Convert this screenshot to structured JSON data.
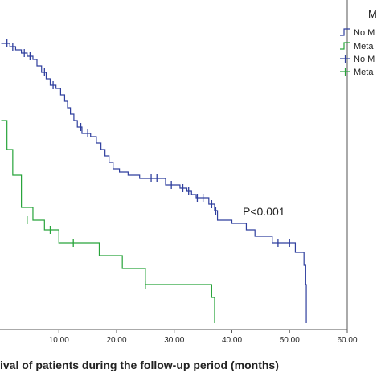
{
  "chart_data": {
    "type": "line",
    "subtype": "kaplan-meier",
    "xlabel": "ival of patients during the follow-up period (months)",
    "annotation": "P<0.001",
    "legend_title": "M",
    "legend_placement": "top-right",
    "xlim": [
      0,
      60
    ],
    "ylim": [
      0,
      1
    ],
    "x_ticks": [
      "10.00",
      "20.00",
      "30.00",
      "40.00",
      "50.00",
      "60.00"
    ],
    "grid": false,
    "legend_entries": [
      {
        "label": "No M",
        "symbol": "step",
        "color": "#2f3f9e"
      },
      {
        "label": "Meta",
        "symbol": "step",
        "color": "#27a33a"
      },
      {
        "label": "No M",
        "symbol": "cross",
        "color": "#2f3f9e"
      },
      {
        "label": "Meta",
        "symbol": "cross",
        "color": "#27a33a"
      }
    ],
    "series": [
      {
        "color": "#2f3f9e",
        "steps": [
          [
            0,
            0.89
          ],
          [
            1.5,
            0.88
          ],
          [
            2.5,
            0.87
          ],
          [
            3.5,
            0.86
          ],
          [
            4.5,
            0.85
          ],
          [
            5.5,
            0.84
          ],
          [
            6.2,
            0.82
          ],
          [
            7.0,
            0.8
          ],
          [
            7.8,
            0.78
          ],
          [
            8.5,
            0.76
          ],
          [
            9.5,
            0.75
          ],
          [
            10.3,
            0.73
          ],
          [
            11.0,
            0.71
          ],
          [
            11.5,
            0.69
          ],
          [
            12.0,
            0.67
          ],
          [
            12.6,
            0.65
          ],
          [
            13.2,
            0.63
          ],
          [
            14.0,
            0.61
          ],
          [
            15.5,
            0.6
          ],
          [
            16.5,
            0.58
          ],
          [
            17.3,
            0.56
          ],
          [
            18.0,
            0.54
          ],
          [
            18.7,
            0.52
          ],
          [
            19.4,
            0.5
          ],
          [
            20.5,
            0.49
          ],
          [
            22.0,
            0.48
          ],
          [
            24.0,
            0.47
          ],
          [
            28.5,
            0.45
          ],
          [
            31.0,
            0.44
          ],
          [
            32.2,
            0.43
          ],
          [
            33.0,
            0.42
          ],
          [
            33.8,
            0.41
          ],
          [
            36.0,
            0.39
          ],
          [
            37.0,
            0.37
          ],
          [
            37.5,
            0.34
          ],
          [
            40.0,
            0.33
          ],
          [
            42.5,
            0.31
          ],
          [
            44.0,
            0.29
          ],
          [
            47.0,
            0.27
          ],
          [
            51.0,
            0.24
          ],
          [
            52.5,
            0.2
          ],
          [
            52.8,
            0.14
          ],
          [
            52.9,
            0.02
          ]
        ],
        "end_x": 52.9,
        "censored": [
          [
            1,
            0.89
          ],
          [
            2,
            0.88
          ],
          [
            4,
            0.86
          ],
          [
            5,
            0.85
          ],
          [
            7.5,
            0.8
          ],
          [
            9.0,
            0.76
          ],
          [
            13.8,
            0.63
          ],
          [
            15.0,
            0.61
          ],
          [
            26.0,
            0.47
          ],
          [
            27.0,
            0.47
          ],
          [
            29.5,
            0.45
          ],
          [
            31.5,
            0.44
          ],
          [
            32.5,
            0.43
          ],
          [
            34.0,
            0.41
          ],
          [
            35.0,
            0.41
          ],
          [
            36.5,
            0.39
          ],
          [
            37.2,
            0.37
          ],
          [
            48.0,
            0.27
          ],
          [
            50.0,
            0.27
          ]
        ]
      },
      {
        "color": "#27a33a",
        "steps": [
          [
            0,
            0.65
          ],
          [
            1.0,
            0.56
          ],
          [
            2.0,
            0.48
          ],
          [
            3.5,
            0.38
          ],
          [
            5.5,
            0.34
          ],
          [
            7.5,
            0.31
          ],
          [
            10.0,
            0.27
          ],
          [
            17.0,
            0.23
          ],
          [
            21.0,
            0.19
          ],
          [
            25.0,
            0.14
          ],
          [
            36.5,
            0.1
          ],
          [
            37.0,
            0.02
          ]
        ],
        "end_x": 37.0,
        "censored": [
          [
            4.5,
            0.34
          ],
          [
            8.5,
            0.31
          ],
          [
            12.5,
            0.27
          ],
          [
            25.0,
            0.14
          ]
        ]
      }
    ]
  }
}
